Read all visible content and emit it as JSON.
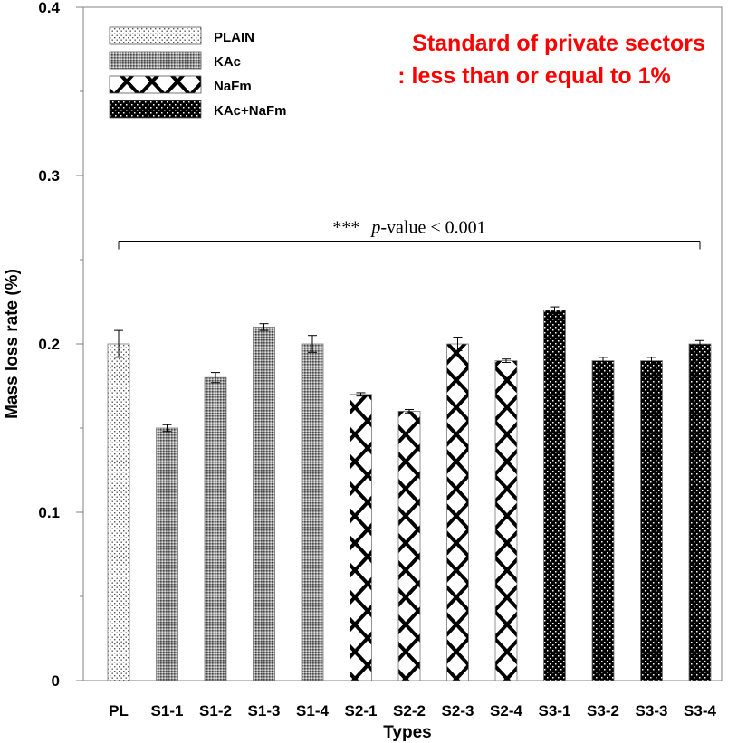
{
  "chart_data": {
    "type": "bar",
    "title": "",
    "xlabel": "Types",
    "ylabel": "Mass loss rate (%)",
    "ylim": [
      0,
      0.4
    ],
    "yticks": [
      "0",
      "0.1",
      "0.2",
      "0.3",
      "0.4"
    ],
    "yticks_values": [
      0,
      0.1,
      0.2,
      0.3,
      0.4
    ],
    "categories": [
      "PL",
      "S1-1",
      "S1-2",
      "S1-3",
      "S1-4",
      "S2-1",
      "S2-2",
      "S2-3",
      "S2-4",
      "S3-1",
      "S3-2",
      "S3-3",
      "S3-4"
    ],
    "values": [
      0.2,
      0.15,
      0.18,
      0.21,
      0.2,
      0.17,
      0.16,
      0.2,
      0.19,
      0.22,
      0.19,
      0.19,
      0.2
    ],
    "errors": [
      0.008,
      0.002,
      0.003,
      0.002,
      0.005,
      0.001,
      0.001,
      0.004,
      0.001,
      0.002,
      0.002,
      0.002,
      0.002
    ],
    "groups": [
      "PLAIN",
      "KAc",
      "KAc",
      "KAc",
      "KAc",
      "NaFm",
      "NaFm",
      "NaFm",
      "NaFm",
      "KAc+NaFm",
      "KAc+NaFm",
      "KAc+NaFm",
      "KAc+NaFm"
    ],
    "legend": [
      {
        "label": "PLAIN",
        "pattern": "dots-light"
      },
      {
        "label": "KAc",
        "pattern": "grid-gray"
      },
      {
        "label": "NaFm",
        "pattern": "cross"
      },
      {
        "label": "KAc+NaFm",
        "pattern": "dots-dark"
      }
    ],
    "legend_position": "top-left",
    "annotation": {
      "line1": "Standard of private sectors",
      "line2": ": less than or equal to 1%",
      "color": "#ff0000"
    },
    "significance": {
      "stars": "***",
      "p_italic": "p",
      "rest": "-value < 0.001",
      "level": 0.261,
      "from": "PL",
      "to": "S3-4"
    }
  }
}
